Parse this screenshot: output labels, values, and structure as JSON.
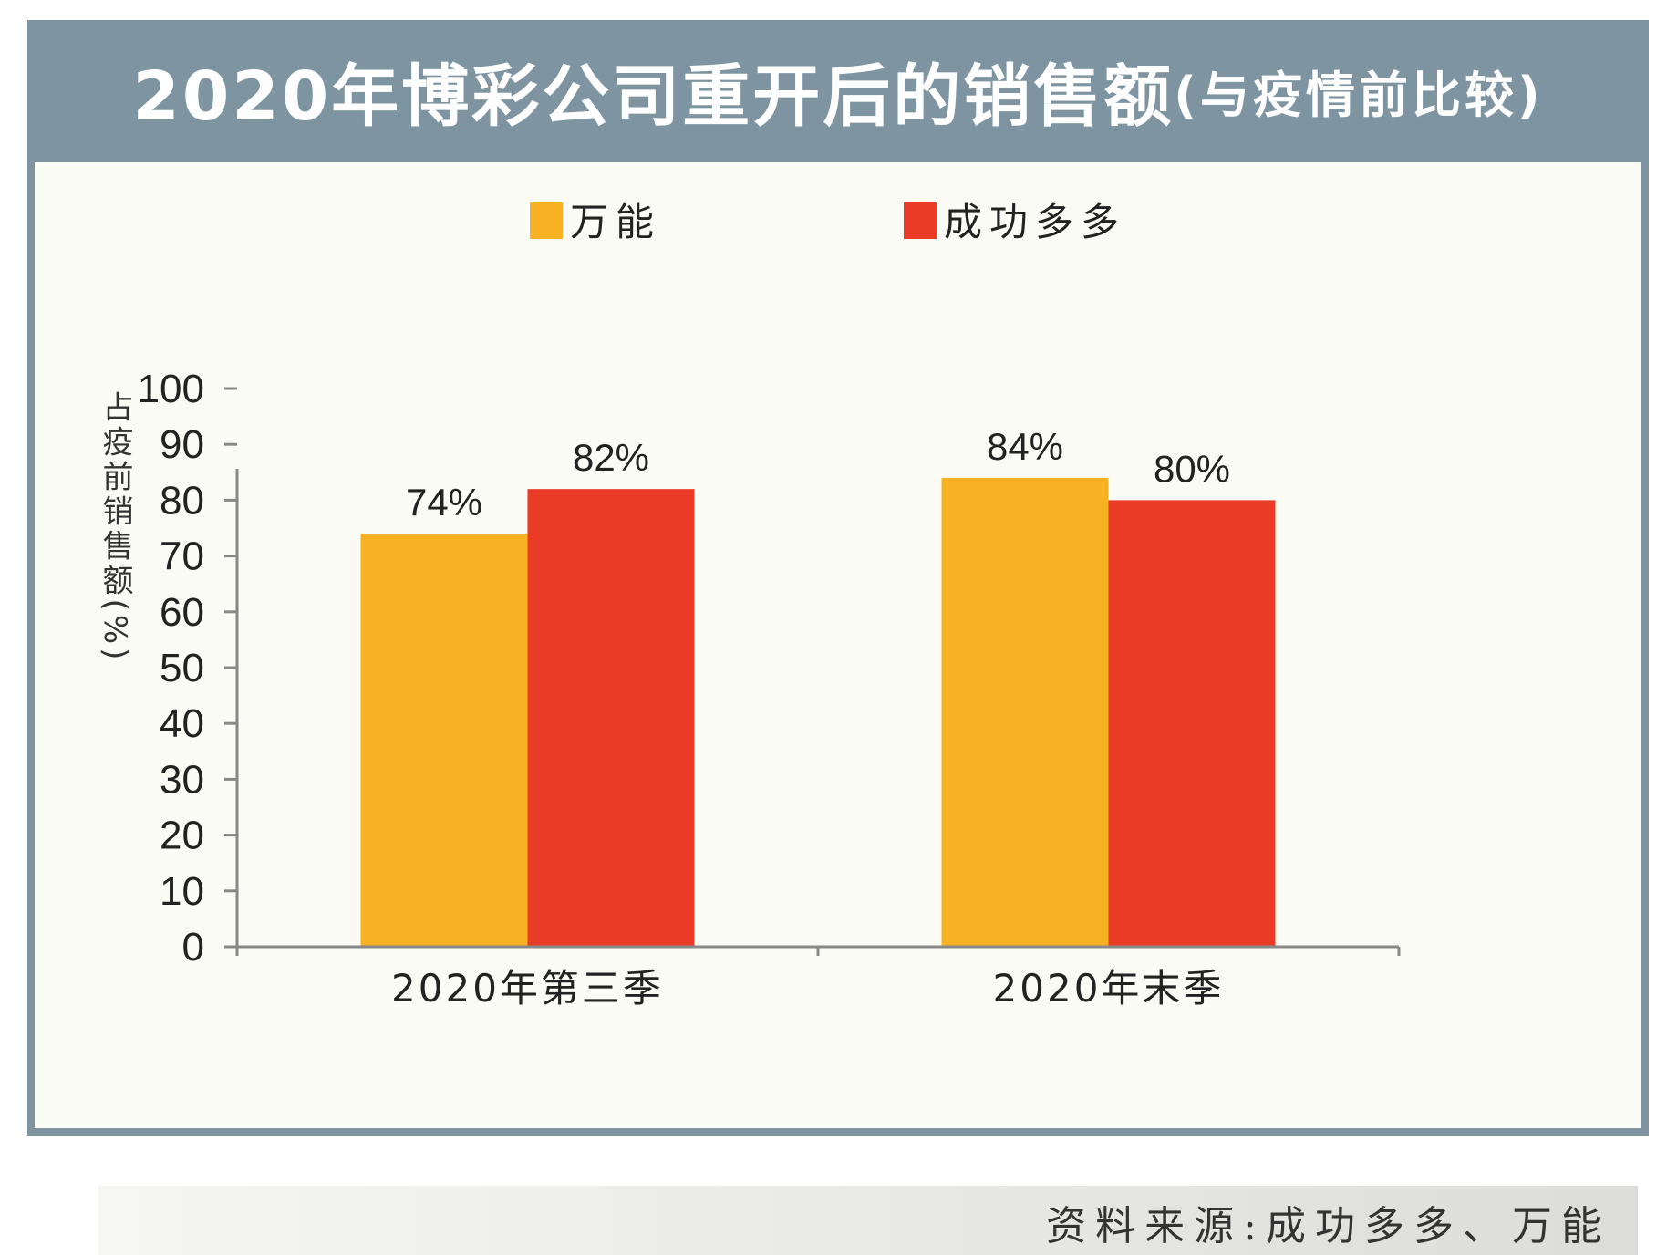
{
  "chart_data": {
    "type": "bar",
    "title": "2020年博彩公司重开后的销售额",
    "subtitle": "(与疫情前比较)",
    "ylabel": "占疫前销售额(%)",
    "ylim": [
      0,
      100
    ],
    "yticks": [
      "0",
      "10",
      "20",
      "30",
      "40",
      "50",
      "60",
      "70",
      "80",
      "90",
      "100"
    ],
    "categories": [
      "2020年第三季",
      "2020年末季"
    ],
    "series": [
      {
        "name": "万能",
        "values": [
          74,
          84
        ],
        "labels": [
          "74%",
          "84%"
        ],
        "color": "#f7b123"
      },
      {
        "name": "成功多多",
        "values": [
          82,
          80
        ],
        "labels": [
          "82%",
          "80%"
        ],
        "color": "#e93b25"
      }
    ],
    "legend_position": "top",
    "grid": false,
    "source": "资料来源:成功多多、万能"
  },
  "colors": {
    "header": "#7e95a1",
    "panel": "#fbfbf6",
    "axis": "#888888"
  }
}
